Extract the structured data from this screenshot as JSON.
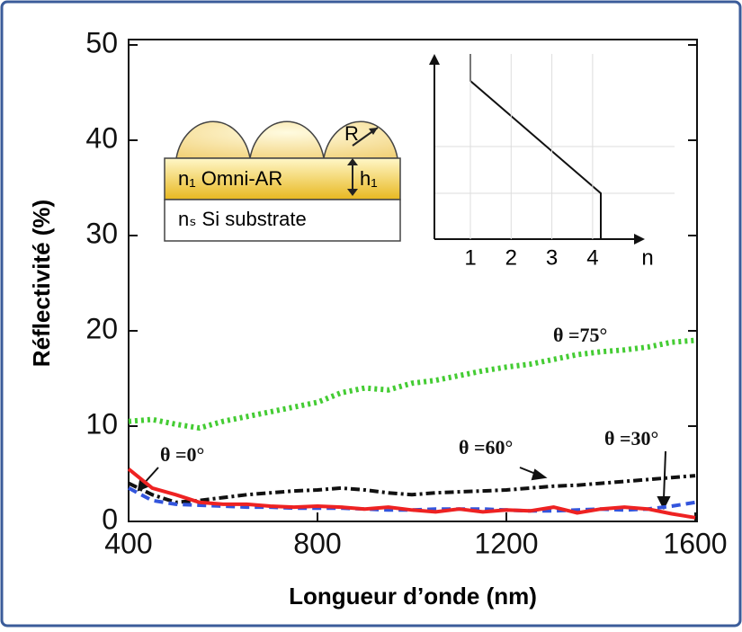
{
  "chart_data": {
    "type": "line",
    "xlabel": "Longueur d’onde (nm)",
    "ylabel": "Réflectivité (%)",
    "x": [
      400,
      450,
      500,
      550,
      600,
      650,
      700,
      750,
      800,
      850,
      900,
      950,
      1000,
      1050,
      1100,
      1150,
      1200,
      1250,
      1300,
      1350,
      1400,
      1450,
      1500,
      1550,
      1600
    ],
    "xlim": [
      400,
      1600
    ],
    "ylim": [
      0,
      50
    ],
    "xticks": [
      400,
      800,
      1200,
      1600
    ],
    "yticks": [
      0,
      10,
      20,
      30,
      40,
      50
    ],
    "grid": false,
    "series": [
      {
        "name": "θ =75°",
        "color": "#44cc33",
        "dash": "dotted",
        "values": [
          10.5,
          10.7,
          10.2,
          9.8,
          10.5,
          11,
          11.5,
          12,
          12.5,
          13.5,
          14,
          13.8,
          14.5,
          14.8,
          15.3,
          15.8,
          16.2,
          16.5,
          17,
          17.5,
          17.8,
          18,
          18.3,
          18.8,
          19
        ]
      },
      {
        "name": "θ =60°",
        "color": "#111111",
        "dash": "dashdot",
        "values": [
          4,
          2.8,
          2,
          2.2,
          2.5,
          2.8,
          3,
          3.2,
          3.3,
          3.5,
          3.3,
          3,
          2.8,
          3,
          3.1,
          3.2,
          3.3,
          3.5,
          3.7,
          3.8,
          4,
          4.2,
          4.4,
          4.6,
          4.8
        ]
      },
      {
        "name": "θ =30°",
        "color": "#3355dd",
        "dash": "dashed",
        "values": [
          3.5,
          2.2,
          1.8,
          1.7,
          1.6,
          1.5,
          1.5,
          1.4,
          1.4,
          1.4,
          1.3,
          1.2,
          1.2,
          1.3,
          1.3,
          1.3,
          1.2,
          1.1,
          1.1,
          1.2,
          1.3,
          1.2,
          1.3,
          1.6,
          2
        ]
      },
      {
        "name": "θ =0°",
        "color": "#ee2222",
        "dash": "solid",
        "values": [
          5.5,
          3.5,
          2.8,
          2,
          1.8,
          1.8,
          1.6,
          1.5,
          1.6,
          1.5,
          1.3,
          1.5,
          1.2,
          1,
          1.3,
          1,
          1.2,
          1.1,
          1.5,
          0.9,
          1.3,
          1.5,
          1.3,
          0.8,
          0.4
        ]
      }
    ],
    "inset_structure": {
      "r_label": "R",
      "h_label": "h₁",
      "layer_label": "n₁ Omni-AR",
      "substrate_label": "nₛ Si substrate"
    },
    "inset_profile": {
      "xticks": [
        1,
        2,
        3,
        4
      ],
      "xlabel": "n"
    }
  }
}
